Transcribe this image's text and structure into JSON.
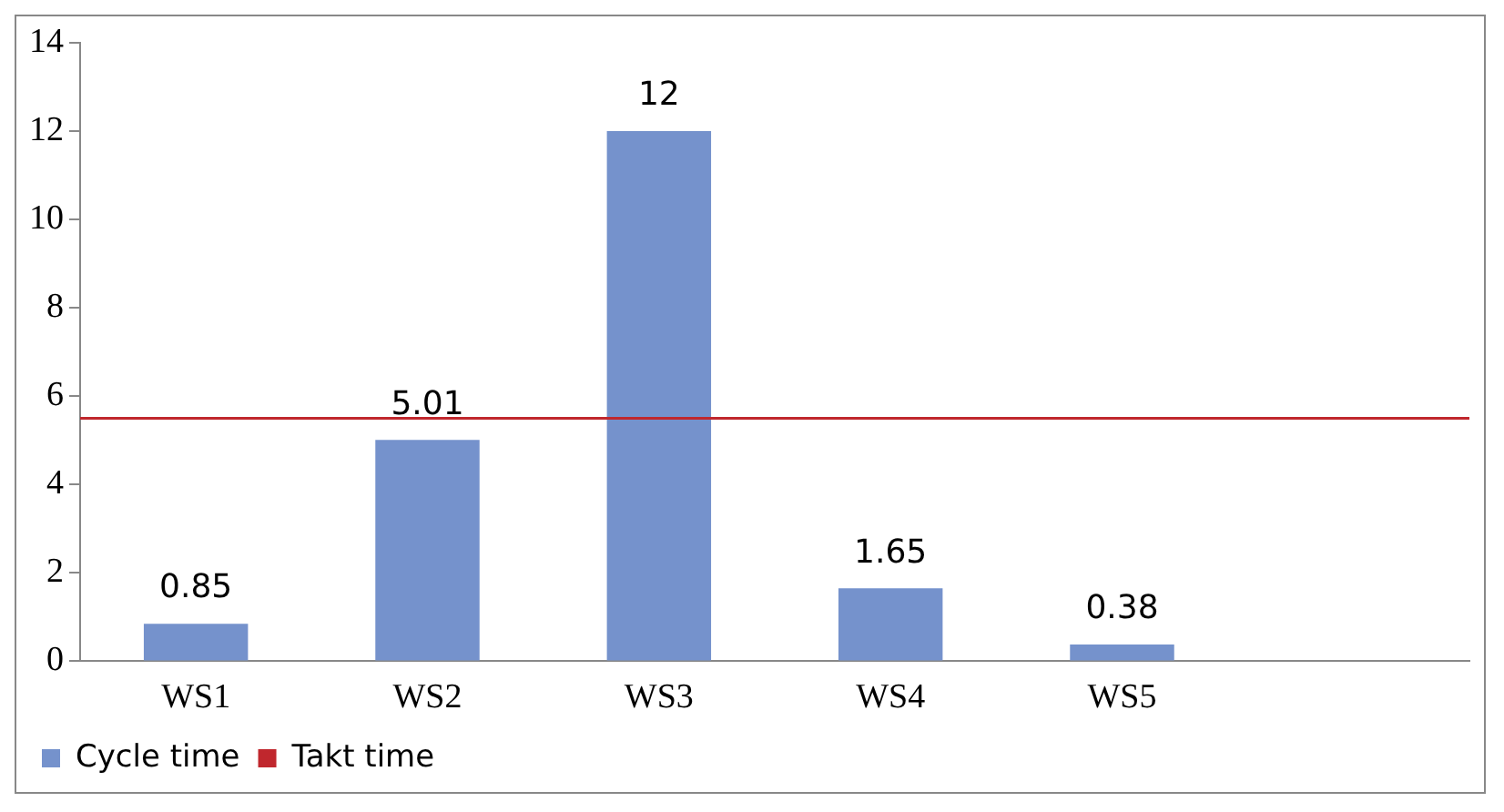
{
  "chart_data": {
    "type": "bar",
    "categories": [
      "WS1",
      "WS2",
      "WS3",
      "WS4",
      "WS5",
      null
    ],
    "series": [
      {
        "name": "Cycle time",
        "color": "#7592cc",
        "values": [
          0.85,
          5.01,
          12,
          1.65,
          0.38,
          null
        ]
      }
    ],
    "ylim": [
      0,
      14
    ],
    "yticks": [
      0,
      2,
      4,
      6,
      8,
      10,
      12,
      14
    ],
    "ref_lines": [
      {
        "axis": "y",
        "value": 5.5,
        "label": "Takt time",
        "color": "#c0272d"
      }
    ],
    "data_labels": true,
    "grid": false,
    "legend": "bottom"
  }
}
